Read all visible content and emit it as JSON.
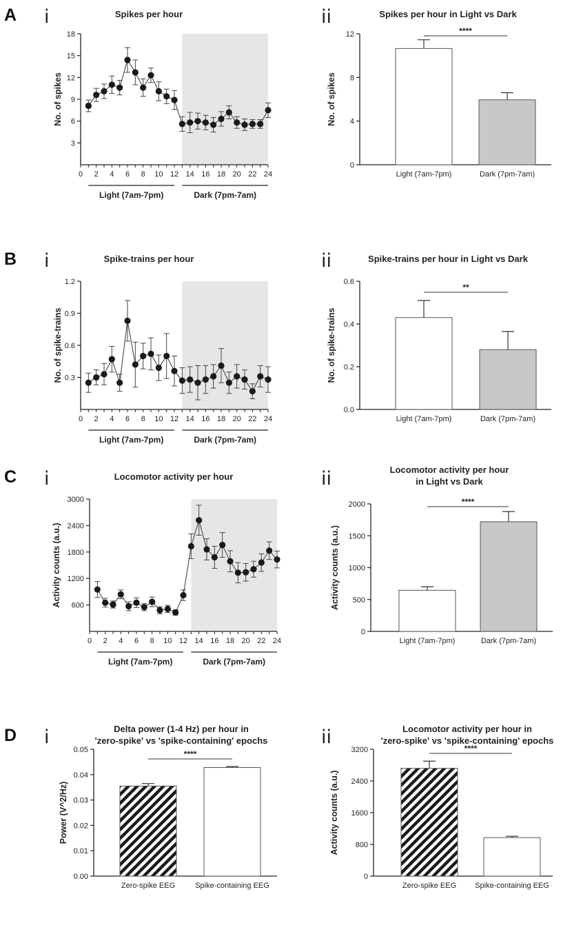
{
  "panels": [
    {
      "letter": "A",
      "line_chart": {
        "roman": "i",
        "chart_data": {
          "type": "line",
          "title": "Spikes per hour",
          "ylabel": "No. of spikes",
          "xlim": [
            0,
            24
          ],
          "ylim": [
            0,
            18
          ],
          "x_ticks": [
            0,
            2,
            4,
            6,
            8,
            10,
            12,
            14,
            16,
            18,
            20,
            22,
            24
          ],
          "y_ticks": [
            3,
            6,
            9,
            12,
            15,
            18
          ],
          "shaded_x_range": [
            13,
            24
          ],
          "groups": [
            {
              "label": "Light (7am-7pm)",
              "x_range": [
                1,
                12
              ]
            },
            {
              "label": "Dark (7pm-7am)",
              "x_range": [
                13,
                24
              ]
            }
          ],
          "x": [
            1,
            2,
            3,
            4,
            5,
            6,
            7,
            8,
            9,
            10,
            11,
            12,
            13,
            14,
            15,
            16,
            17,
            18,
            19,
            20,
            21,
            22,
            23,
            24
          ],
          "y": [
            8.1,
            9.6,
            10.1,
            11.0,
            10.6,
            14.4,
            12.7,
            10.6,
            12.3,
            10.1,
            9.4,
            8.9,
            5.6,
            5.8,
            6.0,
            5.8,
            5.5,
            6.3,
            7.2,
            5.8,
            5.5,
            5.6,
            5.6,
            7.5
          ],
          "err": [
            0.8,
            0.9,
            1.0,
            1.2,
            1.0,
            1.7,
            1.7,
            1.2,
            1.0,
            1.3,
            1.0,
            1.3,
            1.0,
            1.4,
            1.1,
            1.0,
            1.0,
            1.0,
            0.9,
            0.8,
            0.8,
            0.6,
            0.6,
            1.0
          ]
        }
      },
      "bar_chart": {
        "roman": "ii",
        "chart_data": {
          "type": "bar",
          "title": "Spikes per hour in Light vs Dark",
          "ylabel": "No. of spikes",
          "ylim": [
            0,
            12
          ],
          "y_ticks": [
            0,
            4,
            8,
            12
          ],
          "categories": [
            "Light (7am-7pm)",
            "Dark (7pm-7am)"
          ],
          "values": [
            10.65,
            5.95
          ],
          "errors": [
            0.8,
            0.65
          ],
          "fills": [
            "#ffffff",
            "#c8c8c8"
          ],
          "significance": "****"
        }
      }
    },
    {
      "letter": "B",
      "line_chart": {
        "roman": "i",
        "chart_data": {
          "type": "line",
          "title": "Spike-trains per hour",
          "ylabel": "No. of spike-trains",
          "xlim": [
            0,
            24
          ],
          "ylim": [
            0,
            1.2
          ],
          "x_ticks": [
            0,
            2,
            4,
            6,
            8,
            10,
            12,
            14,
            16,
            18,
            20,
            22,
            24
          ],
          "y_ticks": [
            0.3,
            0.6,
            0.9,
            1.2
          ],
          "shaded_x_range": [
            13,
            24
          ],
          "groups": [
            {
              "label": "Light (7am-7pm)",
              "x_range": [
                1,
                12
              ]
            },
            {
              "label": "Dark (7pm-7am)",
              "x_range": [
                13,
                24
              ]
            }
          ],
          "x": [
            1,
            2,
            3,
            4,
            5,
            6,
            7,
            8,
            9,
            10,
            11,
            12,
            13,
            14,
            15,
            16,
            17,
            18,
            19,
            20,
            21,
            22,
            23,
            24
          ],
          "y": [
            0.25,
            0.3,
            0.33,
            0.47,
            0.25,
            0.83,
            0.42,
            0.5,
            0.52,
            0.39,
            0.5,
            0.36,
            0.27,
            0.28,
            0.25,
            0.28,
            0.31,
            0.41,
            0.25,
            0.31,
            0.28,
            0.17,
            0.31,
            0.28
          ],
          "err": [
            0.09,
            0.07,
            0.1,
            0.12,
            0.08,
            0.19,
            0.21,
            0.12,
            0.15,
            0.12,
            0.21,
            0.14,
            0.12,
            0.12,
            0.16,
            0.13,
            0.11,
            0.16,
            0.1,
            0.11,
            0.09,
            0.07,
            0.1,
            0.12
          ]
        }
      },
      "bar_chart": {
        "roman": "ii",
        "chart_data": {
          "type": "bar",
          "title": "Spike-trains per hour in Light vs Dark",
          "ylabel": "No. of spike-trains",
          "ylim": [
            0,
            0.6
          ],
          "y_ticks": [
            0.0,
            0.2,
            0.4,
            0.6
          ],
          "categories": [
            "Light (7am-7pm)",
            "Dark (7pm-7am)"
          ],
          "values": [
            0.43,
            0.28
          ],
          "errors": [
            0.08,
            0.085
          ],
          "fills": [
            "#ffffff",
            "#c8c8c8"
          ],
          "significance": "**"
        }
      }
    },
    {
      "letter": "C",
      "line_chart": {
        "roman": "i",
        "chart_data": {
          "type": "line",
          "title": "Locomotor activity per hour",
          "ylabel": "Activity counts (a.u.)",
          "xlim": [
            0,
            24
          ],
          "ylim": [
            0,
            3000
          ],
          "x_ticks": [
            0,
            2,
            4,
            6,
            8,
            10,
            12,
            14,
            16,
            18,
            20,
            22,
            24
          ],
          "y_ticks": [
            600,
            1200,
            1800,
            2400,
            3000
          ],
          "shaded_x_range": [
            13,
            24
          ],
          "groups": [
            {
              "label": "Light (7am-7pm)",
              "x_range": [
                1,
                12
              ]
            },
            {
              "label": "Dark (7pm-7am)",
              "x_range": [
                13,
                24
              ]
            }
          ],
          "x": [
            1,
            2,
            3,
            4,
            5,
            6,
            7,
            8,
            9,
            10,
            11,
            12,
            13,
            14,
            15,
            16,
            17,
            18,
            19,
            20,
            21,
            22,
            23,
            24
          ],
          "y": [
            950,
            650,
            610,
            840,
            570,
            650,
            550,
            670,
            480,
            510,
            430,
            820,
            1930,
            2520,
            1860,
            1680,
            1960,
            1590,
            1330,
            1340,
            1410,
            1560,
            1830,
            1630
          ],
          "err": [
            180,
            100,
            80,
            100,
            100,
            110,
            80,
            110,
            80,
            80,
            60,
            120,
            280,
            340,
            240,
            250,
            280,
            240,
            230,
            200,
            180,
            200,
            200,
            190
          ]
        }
      },
      "bar_chart": {
        "roman": "ii",
        "chart_data": {
          "type": "bar",
          "title": "Locomotor activity per hour",
          "title_line2": "in Light vs Dark",
          "ylabel": "Activity counts (a.u.)",
          "ylim": [
            0,
            2000
          ],
          "y_ticks": [
            0,
            500,
            1000,
            1500,
            2000
          ],
          "categories": [
            "Light (7am-7pm)",
            "Dark (7pm-7am)"
          ],
          "values": [
            645,
            1720
          ],
          "errors": [
            55,
            160
          ],
          "fills": [
            "#ffffff",
            "#c8c8c8"
          ],
          "significance": "****"
        }
      }
    },
    {
      "letter": "D",
      "left_bar_chart": {
        "roman": "i",
        "chart_data": {
          "type": "bar",
          "title": "Delta power (1-4 Hz) per hour in",
          "title_line2": "'zero-spike' vs 'spike-containing' epochs",
          "ylabel": "Power (V^2/Hz)",
          "ylim": [
            0,
            0.05
          ],
          "y_ticks": [
            0.0,
            0.01,
            0.02,
            0.03,
            0.04,
            0.05
          ],
          "categories": [
            "Zero-spike EEG",
            "Spike-containing EEG"
          ],
          "values": [
            0.0355,
            0.0428
          ],
          "errors": [
            0.001,
            0.0004
          ],
          "fills": [
            "hatch",
            "#ffffff"
          ],
          "significance": "****"
        }
      },
      "right_bar_chart": {
        "roman": "ii",
        "chart_data": {
          "type": "bar",
          "title": "Locomotor activity per hour in",
          "title_line2": "'zero-spike' vs 'spike-containing' epochs",
          "ylabel": "Activity counts (a.u.)",
          "ylim": [
            0,
            3200
          ],
          "y_ticks": [
            0,
            800,
            1600,
            2400,
            3200
          ],
          "categories": [
            "Zero-spike EEG",
            "Spike-containing EEG"
          ],
          "values": [
            2720,
            970
          ],
          "errors": [
            180,
            35
          ],
          "fills": [
            "hatch",
            "#ffffff"
          ],
          "significance": "****"
        }
      }
    }
  ]
}
